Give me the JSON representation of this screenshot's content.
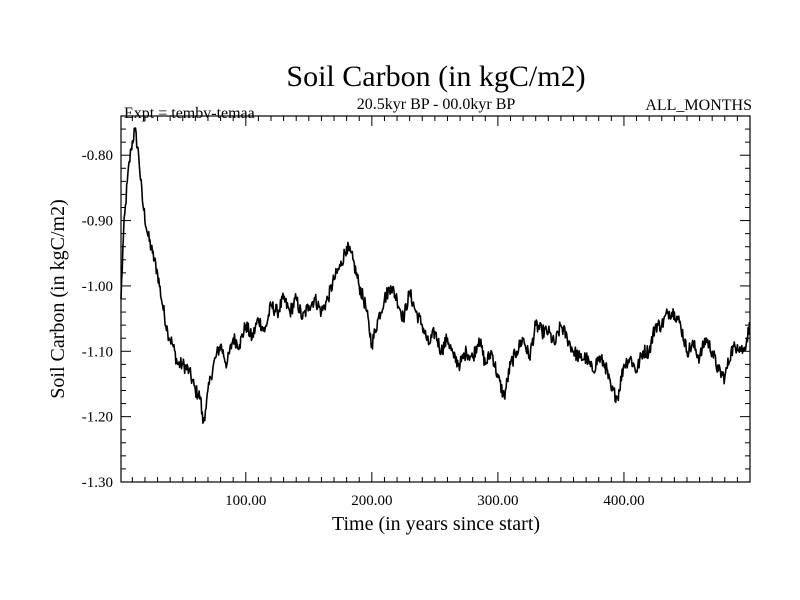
{
  "chart_data": {
    "type": "line",
    "title": "Soil Carbon (in kgC/m2)",
    "subtitle": "20.5kyr BP - 00.0kyr BP",
    "left_label": "Expt = tembv-temaa",
    "right_label": "ALL_MONTHS",
    "xlabel": "Time (in years since start)",
    "ylabel": "Soil Carbon (in kgC/m2)",
    "xlim": [
      1,
      500
    ],
    "ylim": [
      -1.3,
      -0.74
    ],
    "x_ticks": [
      100,
      200,
      300,
      400
    ],
    "x_tick_labels": [
      "100.00",
      "200.00",
      "300.00",
      "400.00"
    ],
    "y_ticks": [
      -0.8,
      -0.9,
      -1.0,
      -1.1,
      -1.2,
      -1.3
    ],
    "y_tick_labels": [
      "-0.80",
      "-0.90",
      "-1.00",
      "-1.10",
      "-1.20",
      "-1.30"
    ],
    "grid": false,
    "series": [
      {
        "name": "Soil Carbon",
        "color": "#000000",
        "x": [
          1,
          3,
          6,
          9,
          12,
          15,
          18,
          22,
          26,
          30,
          34,
          38,
          42,
          46,
          50,
          55,
          60,
          64,
          66,
          68,
          72,
          76,
          80,
          85,
          90,
          95,
          100,
          105,
          110,
          115,
          120,
          125,
          130,
          135,
          140,
          145,
          150,
          155,
          160,
          165,
          170,
          175,
          180,
          185,
          190,
          195,
          200,
          205,
          210,
          215,
          220,
          225,
          230,
          235,
          240,
          245,
          250,
          255,
          260,
          265,
          270,
          275,
          280,
          285,
          290,
          295,
          300,
          305,
          310,
          315,
          320,
          325,
          330,
          335,
          340,
          345,
          350,
          355,
          360,
          365,
          370,
          375,
          380,
          385,
          390,
          395,
          400,
          405,
          410,
          415,
          420,
          425,
          430,
          435,
          440,
          445,
          450,
          455,
          460,
          465,
          470,
          475,
          480,
          485,
          490,
          495,
          500
        ],
        "values": [
          -1.02,
          -0.92,
          -0.84,
          -0.79,
          -0.76,
          -0.8,
          -0.87,
          -0.92,
          -0.95,
          -0.98,
          -1.03,
          -1.07,
          -1.09,
          -1.12,
          -1.12,
          -1.13,
          -1.16,
          -1.17,
          -1.21,
          -1.19,
          -1.14,
          -1.11,
          -1.09,
          -1.12,
          -1.08,
          -1.09,
          -1.06,
          -1.08,
          -1.05,
          -1.07,
          -1.03,
          -1.04,
          -1.02,
          -1.04,
          -1.02,
          -1.05,
          -1.03,
          -1.02,
          -1.04,
          -1.02,
          -0.99,
          -0.97,
          -0.94,
          -0.96,
          -1.0,
          -1.03,
          -1.09,
          -1.05,
          -1.02,
          -1.0,
          -1.02,
          -1.05,
          -1.01,
          -1.04,
          -1.06,
          -1.09,
          -1.07,
          -1.1,
          -1.08,
          -1.11,
          -1.12,
          -1.1,
          -1.11,
          -1.08,
          -1.12,
          -1.1,
          -1.14,
          -1.17,
          -1.12,
          -1.1,
          -1.08,
          -1.11,
          -1.06,
          -1.07,
          -1.07,
          -1.09,
          -1.06,
          -1.08,
          -1.1,
          -1.11,
          -1.11,
          -1.13,
          -1.11,
          -1.12,
          -1.16,
          -1.17,
          -1.12,
          -1.11,
          -1.13,
          -1.1,
          -1.1,
          -1.06,
          -1.06,
          -1.04,
          -1.04,
          -1.06,
          -1.1,
          -1.09,
          -1.11,
          -1.08,
          -1.1,
          -1.13,
          -1.14,
          -1.1,
          -1.09,
          -1.1,
          -1.06
        ]
      }
    ]
  }
}
